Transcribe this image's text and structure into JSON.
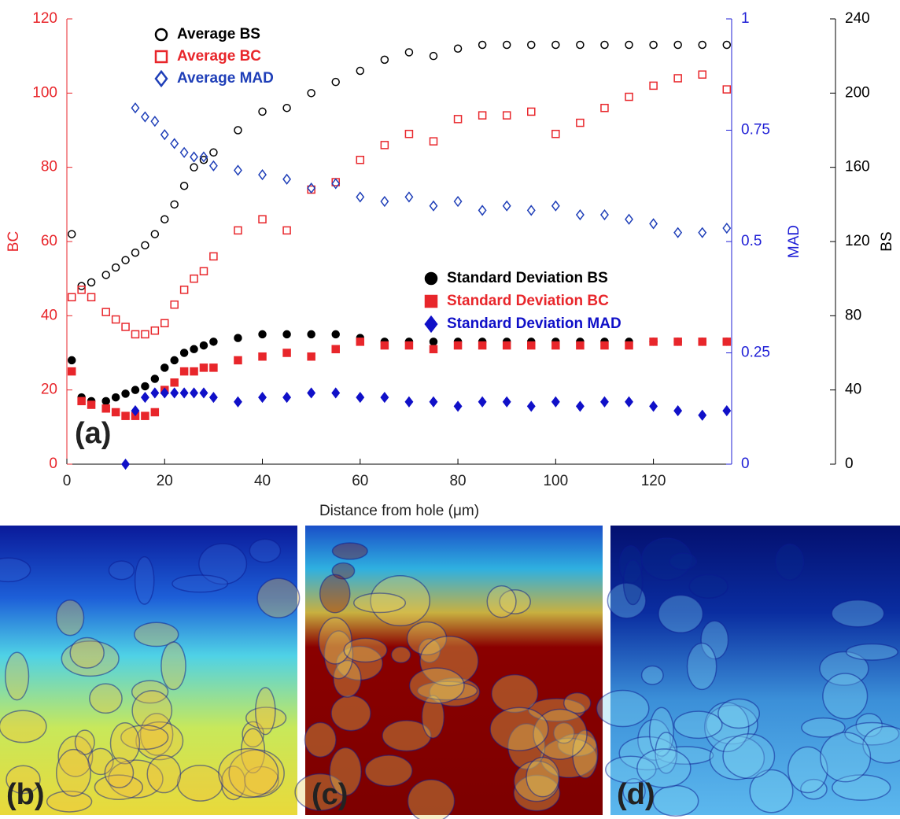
{
  "chart_data": {
    "type": "scatter",
    "xlabel": "Distance from hole (μm)",
    "ylabel": "BC",
    "y2label": "MAD",
    "y3label": "BS",
    "panel_label": "(a)",
    "x": [
      1,
      3,
      5,
      8,
      10,
      12,
      14,
      16,
      18,
      20,
      22,
      24,
      26,
      28,
      30,
      35,
      40,
      45,
      50,
      55,
      60,
      65,
      70,
      75,
      80,
      85,
      90,
      95,
      100,
      105,
      110,
      115,
      120,
      125,
      130,
      135
    ],
    "xlim": [
      0,
      136
    ],
    "xticks": [
      0,
      20,
      40,
      60,
      80,
      100,
      120
    ],
    "ylim": [
      0,
      120
    ],
    "yticks": [
      0,
      20,
      40,
      60,
      80,
      100,
      120
    ],
    "y2lim": [
      0,
      1
    ],
    "y2ticks": [
      0,
      0.25,
      0.5,
      0.75,
      1
    ],
    "y3lim": [
      0,
      240
    ],
    "y3ticks": [
      0,
      40,
      80,
      120,
      160,
      200,
      240
    ],
    "y_color": "#e8262b",
    "y2_color": "#1f1fd6",
    "y3_color": "#000000",
    "series": [
      {
        "name": "Average BS",
        "color": "#000000",
        "marker": "circle",
        "filled": false,
        "axis": "y3",
        "values": [
          124,
          96,
          98,
          102,
          106,
          110,
          114,
          118,
          124,
          132,
          140,
          150,
          160,
          164,
          168,
          180,
          190,
          192,
          200,
          206,
          212,
          218,
          222,
          220,
          224,
          226,
          226,
          226,
          226,
          226,
          226,
          226,
          226,
          226,
          226,
          226
        ]
      },
      {
        "name": "Average BC",
        "color": "#e8262b",
        "marker": "square",
        "filled": false,
        "values": [
          45,
          47,
          45,
          41,
          39,
          37,
          35,
          35,
          36,
          38,
          43,
          47,
          50,
          52,
          56,
          63,
          66,
          63,
          74,
          76,
          82,
          86,
          89,
          87,
          93,
          94,
          94,
          95,
          89,
          92,
          96,
          99,
          102,
          104,
          105,
          101
        ]
      },
      {
        "name": "Average MAD",
        "color": "#1f3fb8",
        "marker": "diamond",
        "filled": false,
        "axis": "y2",
        "values": [
          null,
          null,
          null,
          null,
          null,
          null,
          0.8,
          0.78,
          0.77,
          0.74,
          0.72,
          0.7,
          0.69,
          0.69,
          0.67,
          0.66,
          0.65,
          0.64,
          0.62,
          0.63,
          0.6,
          0.59,
          0.6,
          0.58,
          0.59,
          0.57,
          0.58,
          0.57,
          0.58,
          0.56,
          0.56,
          0.55,
          0.54,
          0.52,
          0.52,
          0.53
        ]
      },
      {
        "name": "Standard Deviation  BS",
        "color": "#000000",
        "marker": "circle",
        "filled": true,
        "axis": "y3",
        "values": [
          56,
          36,
          34,
          34,
          36,
          38,
          40,
          42,
          46,
          52,
          56,
          60,
          62,
          64,
          66,
          68,
          70,
          70,
          70,
          70,
          68,
          66,
          66,
          66,
          66,
          66,
          66,
          66,
          66,
          66,
          66,
          66,
          66,
          66,
          66,
          66
        ]
      },
      {
        "name": "Standard Deviation BC",
        "color": "#e8262b",
        "marker": "square",
        "filled": true,
        "values": [
          25,
          17,
          16,
          15,
          14,
          13,
          13,
          13,
          14,
          20,
          22,
          25,
          25,
          26,
          26,
          28,
          29,
          30,
          29,
          31,
          33,
          32,
          32,
          31,
          32,
          32,
          32,
          32,
          32,
          32,
          32,
          32,
          33,
          33,
          33,
          33
        ]
      },
      {
        "name": "Standard Deviation MAD",
        "color": "#1010c8",
        "marker": "diamond",
        "filled": true,
        "axis": "y2",
        "values": [
          null,
          null,
          null,
          null,
          null,
          0,
          0.12,
          0.15,
          0.16,
          0.16,
          0.16,
          0.16,
          0.16,
          0.16,
          0.15,
          0.14,
          0.15,
          0.15,
          0.16,
          0.16,
          0.15,
          0.15,
          0.14,
          0.14,
          0.13,
          0.14,
          0.14,
          0.13,
          0.14,
          0.13,
          0.14,
          0.14,
          0.13,
          0.12,
          0.11,
          0.12
        ]
      }
    ]
  },
  "images": [
    {
      "label": "(b)"
    },
    {
      "label": "(c)"
    },
    {
      "label": "(d)"
    }
  ]
}
